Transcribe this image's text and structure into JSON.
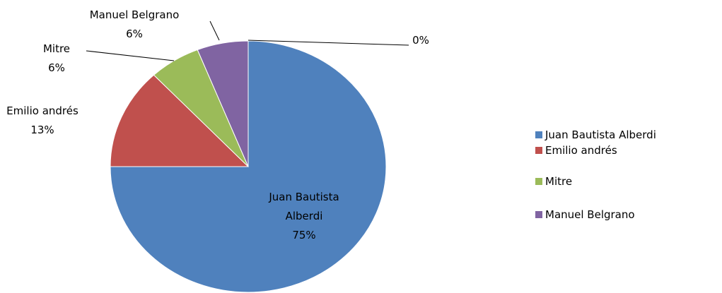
{
  "chart_data": {
    "type": "pie",
    "categories": [
      "Juan Bautista Alberdi",
      "Emilio andrés",
      "Mitre",
      "Manuel Belgrano",
      null
    ],
    "values": [
      75,
      13,
      6,
      6,
      0
    ],
    "value_labels": [
      "75%",
      "13%",
      "6%",
      "6%",
      "0%"
    ],
    "colors": [
      "#4f81bd",
      "#c0504d",
      "#9bbb59",
      "#8064a2",
      "#f79646"
    ],
    "legend": "right"
  }
}
